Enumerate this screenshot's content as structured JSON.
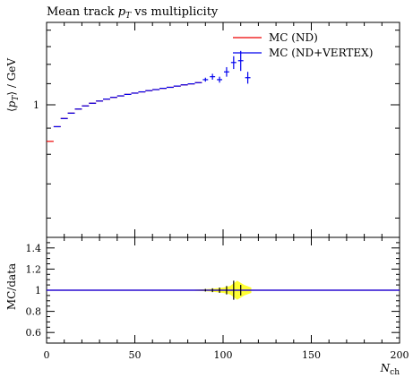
{
  "chart_data": {
    "type": "line",
    "title": "Mean track $p_T$ vs multiplicity",
    "title_parts": {
      "prefix": "Mean track ",
      "symbol": "p",
      "subscript": "T",
      "suffix": " vs multiplicity"
    },
    "ylabel": "⟨p_T⟩ / GeV",
    "ylabel_parts": {
      "open": "⟨",
      "symbol": "p",
      "subscript": "T",
      "close": "⟩ / GeV"
    },
    "xlabel": "N_ch",
    "xlabel_parts": {
      "symbol": "N",
      "subscript": "ch"
    },
    "ratio_ylabel": "MC/data",
    "xlim": [
      0,
      200
    ],
    "ylim": [
      0.55,
      1.45
    ],
    "ylog": true,
    "ratio_ylim": [
      0.5,
      1.5
    ],
    "legend_placement": "top-right",
    "colors": {
      "nd": "#ee0000",
      "vertex": "#0000ee",
      "data": "#000000",
      "band": "#ffff33"
    },
    "x_ticks": [
      0,
      50,
      100,
      150,
      200
    ],
    "x_tick_labels": [
      "0",
      "50",
      "100",
      "150",
      "200"
    ],
    "y_ticks": [
      1
    ],
    "y_tick_labels": [
      "1"
    ],
    "ratio_ticks": [
      0.6,
      0.8,
      1.0,
      1.2,
      1.4
    ],
    "ratio_tick_labels": [
      "0.6",
      "0.8",
      "1",
      "1.2",
      "1.4"
    ],
    "series": [
      {
        "name": "MC (ND)",
        "color": "#ee0000",
        "bin_edges": [
          0,
          4,
          8,
          12,
          16,
          20,
          24,
          28,
          32,
          36,
          40,
          44,
          48,
          52,
          56,
          60,
          64,
          68,
          72,
          76,
          80,
          84,
          88
        ],
        "values": [
          0.848,
          0.906,
          0.94,
          0.963,
          0.981,
          0.995,
          1.007,
          1.017,
          1.026,
          1.034,
          1.041,
          1.048,
          1.054,
          1.06,
          1.066,
          1.071,
          1.077,
          1.082,
          1.088,
          1.094,
          1.099,
          1.105
        ]
      },
      {
        "name": "MC (ND+VERTEX)",
        "color": "#0000ee",
        "bin_edges": [
          4,
          8,
          12,
          16,
          20,
          24,
          28,
          32,
          36,
          40,
          44,
          48,
          52,
          56,
          60,
          64,
          68,
          72,
          76,
          80,
          84,
          88
        ],
        "values": [
          0.906,
          0.94,
          0.963,
          0.981,
          0.995,
          1.007,
          1.017,
          1.026,
          1.034,
          1.041,
          1.048,
          1.054,
          1.06,
          1.066,
          1.071,
          1.077,
          1.082,
          1.088,
          1.094,
          1.099,
          1.105
        ]
      }
    ],
    "data_points": {
      "x": [
        90,
        94,
        98,
        102,
        106,
        110,
        114
      ],
      "xerr": [
        1.5,
        1.5,
        1.5,
        1.5,
        1.5,
        1.5,
        1.5
      ],
      "y": [
        1.12,
        1.135,
        1.12,
        1.16,
        1.21,
        1.22,
        1.13
      ],
      "yerr": [
        0.01,
        0.015,
        0.015,
        0.025,
        0.035,
        0.055,
        0.03
      ]
    },
    "ratio": {
      "x": [
        0,
        200
      ],
      "y": [
        1,
        1
      ],
      "band_x": [
        84,
        88,
        92,
        96,
        100,
        104,
        108,
        112,
        116
      ],
      "band_halfwidth": [
        0.005,
        0.008,
        0.012,
        0.018,
        0.025,
        0.04,
        0.09,
        0.05,
        0.025
      ],
      "marker_x": [
        90,
        94,
        98,
        102,
        106,
        110
      ]
    }
  }
}
